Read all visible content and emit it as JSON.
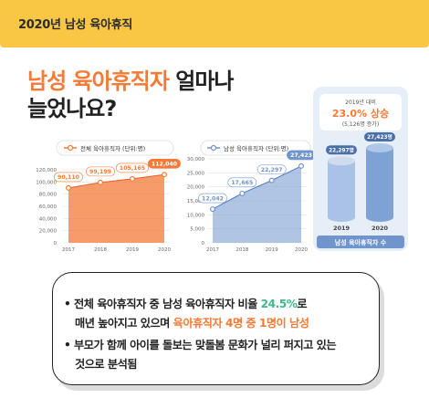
{
  "header": {
    "title": "2020년 남성 육아휴직"
  },
  "headline": {
    "accent": "남성 육아휴직자",
    "rest1": " 얼마나",
    "line2": "늘었나요?"
  },
  "callout": {
    "line1": "2019년 대비",
    "highlight": "23.0% 상승",
    "line3": "(5,126명 증가)"
  },
  "message": {
    "bullet": "•",
    "b1_part1": "전체 육아휴직자 중 남성 육아휴직자 비율 ",
    "b1_green": "24.5%",
    "b1_part2": "로",
    "b1_line2": "매년 높아지고 있으며 ",
    "b1_orange": "육아휴직자 4명 중 1명이 남성",
    "b2_line1": "부모가 함께 아이를 돌보는 맞돌봄 문화가 널리 퍼지고 있는",
    "b2_line2": "것으로 분석됨"
  },
  "colors": {
    "header": "#f9c744",
    "orange": "#f47a36",
    "blue": "#6f95cc",
    "green": "#3fb98c"
  },
  "chart_data": [
    {
      "type": "area",
      "legend": "전체 육아휴직자 (단위:명)",
      "categories": [
        "2017",
        "2018",
        "2019",
        "2020"
      ],
      "values": [
        90110,
        99199,
        105165,
        112040
      ],
      "data_labels": [
        "90,110",
        "99,199",
        "105,165",
        "112,040"
      ],
      "yticks": [
        "0",
        "20,000",
        "40,000",
        "60,000",
        "80,000",
        "100,000",
        "120,000"
      ],
      "ylim": [
        0,
        120000
      ],
      "color": "#f47a36"
    },
    {
      "type": "area",
      "legend": "남성 육아휴직자 (단위:명)",
      "categories": [
        "2017",
        "2018",
        "2019",
        "2020"
      ],
      "values": [
        12042,
        17665,
        22297,
        27423
      ],
      "data_labels": [
        "12,042",
        "17,665",
        "22,297",
        "27,423"
      ],
      "yticks": [
        "0",
        "5,000",
        "10,000",
        "15,000",
        "20,000",
        "25,000",
        "30,000"
      ],
      "ylim": [
        0,
        30000
      ],
      "color": "#6f95cc"
    },
    {
      "type": "bar",
      "categories": [
        "2019",
        "2020"
      ],
      "values": [
        22297,
        27423
      ],
      "data_labels": [
        "22,297명",
        "27,423명"
      ],
      "xlabel": "남성 육아휴직자 수",
      "color": "#6f95cc"
    }
  ]
}
